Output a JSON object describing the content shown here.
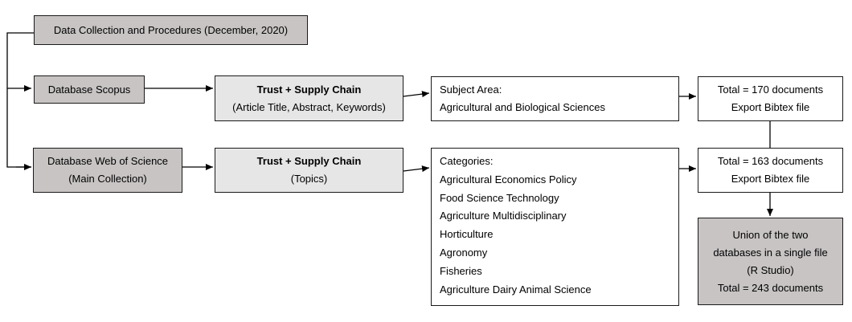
{
  "header": {
    "label": "Data Collection and Procedures (December, 2020)"
  },
  "scopus": {
    "source_label": "Database Scopus",
    "query_title": "Trust + Supply Chain",
    "query_fields": "(Article Title, Abstract, Keywords)",
    "filter_heading": "Subject Area:",
    "filter_items": [
      "Agricultural and Biological Sciences"
    ],
    "result_total": "Total = 170 documents",
    "result_export": "Export Bibtex file"
  },
  "wos": {
    "source_line1": "Database Web of Science",
    "source_line2": "(Main Collection)",
    "query_title": "Trust + Supply Chain",
    "query_fields": "(Topics)",
    "filter_heading": "Categories:",
    "filter_items": [
      "Agricultural Economics Policy",
      "Food Science Technology",
      "Agriculture Multidisciplinary",
      "Horticulture",
      "Agronomy",
      "Fisheries",
      "Agriculture Dairy Animal Science"
    ],
    "result_total": "Total = 163 documents",
    "result_export": "Export Bibtex file"
  },
  "union": {
    "lines": [
      "Union of the two",
      "databases in a single file",
      "(R Studio)",
      "Total = 243 documents"
    ]
  },
  "colors": {
    "dark_fill": "#c8c4c4",
    "light_fill": "#e6e6e6",
    "stroke": "#1a1a1a"
  }
}
